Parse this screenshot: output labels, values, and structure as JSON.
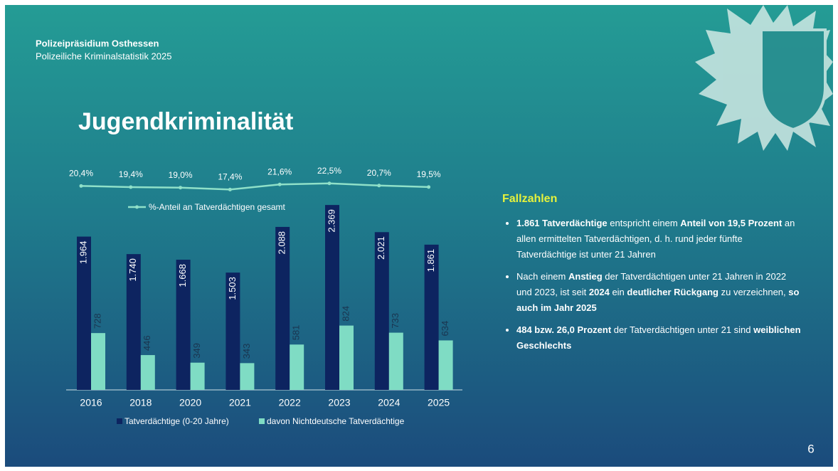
{
  "header": {
    "org": "Polizeipräsidium Osthessen",
    "subtitle": "Polizeiliche Kriminalstatistik 2025"
  },
  "title": "Jugendkriminalität",
  "chart_data": [
    {
      "type": "line",
      "categories": [
        "2016",
        "2018",
        "2020",
        "2021",
        "2022",
        "2023",
        "2024",
        "2025"
      ],
      "series": [
        {
          "name": "%-Anteil an Tatverdächtigen gesamt",
          "color": "#8fe0c8",
          "values": [
            20.4,
            19.4,
            19.0,
            17.4,
            21.6,
            22.5,
            20.7,
            19.5
          ],
          "value_labels": [
            "20,4%",
            "19,4%",
            "19,0%",
            "17,4%",
            "21,6%",
            "22,5%",
            "20,7%",
            "19,5%"
          ]
        }
      ]
    },
    {
      "type": "bar",
      "categories": [
        "2016",
        "2018",
        "2020",
        "2021",
        "2022",
        "2023",
        "2024",
        "2025"
      ],
      "series": [
        {
          "name": "Tatverdächtige (0-20 Jahre)",
          "color": "#0d2460",
          "values": [
            1964,
            1740,
            1668,
            1503,
            2088,
            2369,
            2021,
            1861
          ],
          "value_labels": [
            "1.964",
            "1.740",
            "1.668",
            "1.503",
            "2.088",
            "2.369",
            "2.021",
            "1.861"
          ]
        },
        {
          "name": "davon Nichtdeutsche Tatverdächtige",
          "color": "#7fdcc4",
          "values": [
            728,
            446,
            349,
            343,
            581,
            824,
            733,
            634
          ]
        }
      ]
    }
  ],
  "facts": {
    "heading": "Fallzahlen",
    "bullets": [
      [
        {
          "text": "1.861 Tatverdächtige",
          "bold": true
        },
        {
          "text": " entspricht einem ",
          "bold": false
        },
        {
          "text": "Anteil von 19,5 Prozent",
          "bold": true
        },
        {
          "text": " an allen ermittelten Tatverdächtigen, d. h. rund jeder fünfte Tatverdächtige ist unter 21 Jahren",
          "bold": false
        }
      ],
      [
        {
          "text": "Nach einem ",
          "bold": false
        },
        {
          "text": "Anstieg",
          "bold": true
        },
        {
          "text": " der Tatverdächtigen unter 21 Jahren in 2022 und 2023, ist seit ",
          "bold": false
        },
        {
          "text": "2024",
          "bold": true
        },
        {
          "text": " ein ",
          "bold": false
        },
        {
          "text": "deutlicher Rückgang",
          "bold": true
        },
        {
          "text": " zu verzeichnen, ",
          "bold": false
        },
        {
          "text": "so auch im Jahr 2025",
          "bold": true
        }
      ],
      [
        {
          "text": "484 bzw. 26,0 Prozent",
          "bold": true
        },
        {
          "text": " der Tatverdächtigen unter 21 sind ",
          "bold": false
        },
        {
          "text": "weiblichen Geschlechts",
          "bold": true
        }
      ]
    ]
  },
  "page_number": "6"
}
